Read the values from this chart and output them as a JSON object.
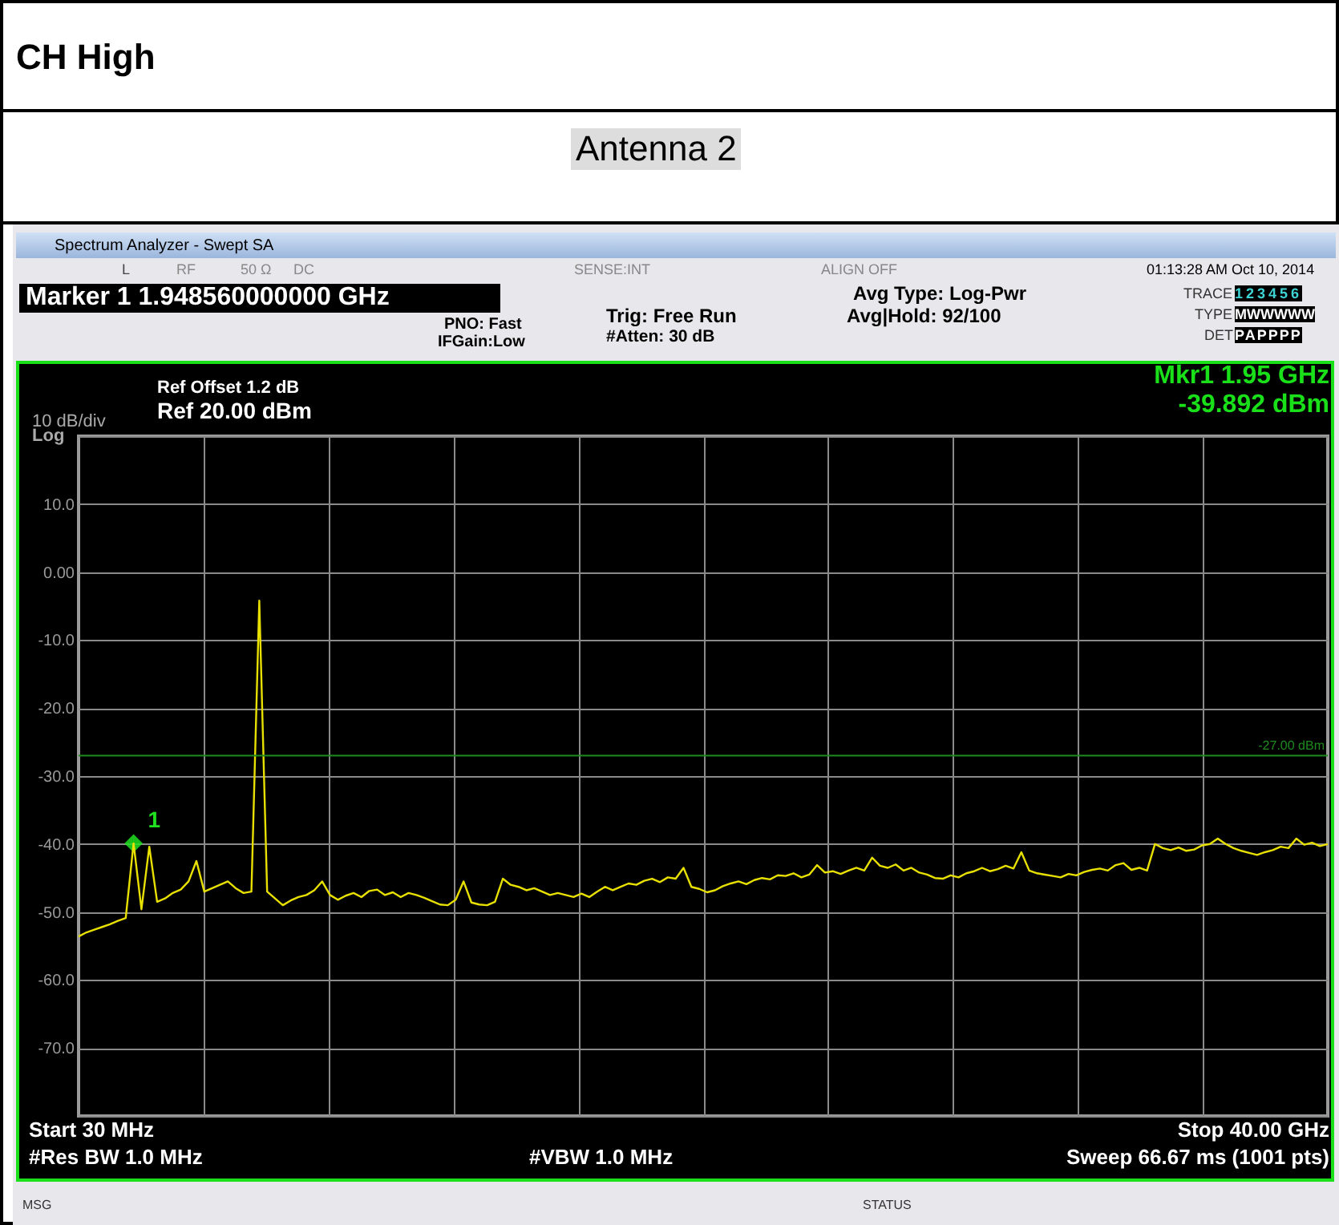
{
  "chart_data": {
    "type": "line",
    "title": "CH  High",
    "subtitle": "Antenna 2",
    "categories": [
      null,
      null,
      null,
      null,
      null,
      null,
      null,
      null,
      null,
      null,
      null,
      null,
      null,
      null,
      null,
      null,
      null,
      null,
      null,
      null,
      null,
      null,
      null,
      null,
      null,
      null,
      null,
      null,
      null,
      null,
      null,
      null,
      null,
      null,
      null,
      null,
      null,
      null,
      null,
      null,
      null,
      null,
      null,
      null,
      null,
      null,
      null,
      null,
      null,
      null,
      null,
      null,
      null,
      null,
      null,
      null,
      null,
      null,
      null,
      null,
      null,
      null,
      null,
      null,
      null,
      null,
      null,
      null,
      null,
      null,
      null,
      null,
      null,
      null,
      null,
      null,
      null,
      null,
      null,
      null,
      null,
      null,
      null,
      null,
      null,
      null,
      null,
      null,
      null,
      null,
      null,
      null,
      null,
      null,
      null,
      null,
      null,
      null,
      null,
      null,
      null,
      null,
      null,
      null,
      null,
      null,
      null,
      null,
      null,
      null,
      null,
      null,
      null,
      null,
      null,
      null,
      null,
      null,
      null,
      null,
      null,
      null,
      null,
      null,
      null,
      null,
      null,
      null,
      null,
      null,
      null,
      null,
      null,
      null,
      null,
      null,
      null,
      null,
      null,
      null,
      null,
      null,
      null,
      null,
      null,
      null,
      null,
      null,
      null,
      null,
      null,
      null,
      null,
      null,
      null,
      null,
      null,
      null,
      null,
      null
    ],
    "ylim": [
      -80,
      20
    ],
    "yticks": [
      {
        "value": 20,
        "label": null
      },
      {
        "value": 10,
        "label": "10.0"
      },
      {
        "value": 0,
        "label": "0.00"
      },
      {
        "value": -10,
        "label": "-10.0"
      },
      {
        "value": -20,
        "label": "-20.0"
      },
      {
        "value": -30,
        "label": "-30.0"
      },
      {
        "value": -40,
        "label": "-40.0"
      },
      {
        "value": -50,
        "label": "-50.0"
      },
      {
        "value": -60,
        "label": "-60.0"
      },
      {
        "value": -70,
        "label": "-70.0"
      },
      {
        "value": -80,
        "label": null
      }
    ],
    "tick_labels": "y",
    "grid": true,
    "series": [
      {
        "color": "#e8e000",
        "values": [
          -53.6,
          -53.0,
          -52.6,
          -52.2,
          -51.8,
          -51.3,
          -50.9,
          -39.9,
          -49.6,
          -40.4,
          -48.5,
          -48.0,
          -47.2,
          -46.7,
          -45.5,
          -42.5,
          -47,
          -46.5,
          -46,
          -45.5,
          -46.5,
          -47.2,
          -47,
          -4.2,
          -47,
          -48,
          -49,
          -48.3,
          -47.8,
          -47.5,
          -46.8,
          -45.5,
          -47.5,
          -48.2,
          -47.6,
          -47.2,
          -47.8,
          -46.9,
          -46.7,
          -47.5,
          -47.1,
          -47.8,
          -47.2,
          -47.5,
          -47.9,
          -48.4,
          -48.9,
          -49,
          -48.2,
          -45.5,
          -48.6,
          -48.9,
          -49,
          -48.5,
          -45.1,
          -46,
          -46.3,
          -46.8,
          -46.5,
          -47,
          -47.5,
          -47.2,
          -47.5,
          -47.8,
          -47.3,
          -47.8,
          -47,
          -46.3,
          -46.8,
          -46.3,
          -45.8,
          -46,
          -45.4,
          -45.1,
          -45.6,
          -44.9,
          -45.1,
          -43.5,
          -46.3,
          -46.6,
          -47.1,
          -46.8,
          -46.2,
          -45.8,
          -45.5,
          -45.9,
          -45.3,
          -45,
          -45.2,
          -44.6,
          -44.7,
          -44.3,
          -44.9,
          -44.5,
          -43.1,
          -44.2,
          -44,
          -44.4,
          -43.9,
          -43.5,
          -43.9,
          -42,
          -43.2,
          -43.5,
          -43,
          -43.9,
          -43.5,
          -44.2,
          -44.5,
          -45,
          -45.1,
          -44.6,
          -44.9,
          -44.3,
          -44,
          -43.5,
          -44,
          -43.7,
          -43.2,
          -43.6,
          -41.2,
          -43.9,
          -44.3,
          -44.5,
          -44.7,
          -44.9,
          -44.4,
          -44.6,
          -44.1,
          -43.8,
          -43.6,
          -43.9,
          -43.1,
          -42.8,
          -43.8,
          -43.5,
          -43.9,
          -40,
          -40.6,
          -40.9,
          -40.5,
          -41,
          -40.8,
          -40.2,
          -40,
          -39.2,
          -40,
          -40.6,
          -41,
          -41.3,
          -41.6,
          -41.2,
          -40.9,
          -40.4,
          -40.6,
          -39.2,
          -40.1,
          -39.8,
          -40.3,
          -40
        ]
      },
      {
        "type": "scatter",
        "name": "1",
        "color": "#20e020",
        "marker": "diamond",
        "values": [
          null,
          null,
          null,
          null,
          null,
          null,
          null,
          -39.9,
          null,
          null,
          null,
          null,
          null,
          null,
          null,
          null,
          null,
          null,
          null,
          null,
          null,
          null,
          null,
          null,
          null,
          null,
          null,
          null,
          null,
          null,
          null,
          null,
          null,
          null,
          null,
          null,
          null,
          null,
          null,
          null,
          null,
          null,
          null,
          null,
          null,
          null,
          null,
          null,
          null,
          null,
          null,
          null,
          null,
          null,
          null,
          null,
          null,
          null,
          null,
          null,
          null,
          null,
          null,
          null,
          null,
          null,
          null,
          null,
          null,
          null,
          null,
          null,
          null,
          null,
          null,
          null,
          null,
          null,
          null,
          null,
          null,
          null,
          null,
          null,
          null,
          null,
          null,
          null,
          null,
          null,
          null,
          null,
          null,
          null,
          null,
          null,
          null,
          null,
          null,
          null,
          null,
          null,
          null,
          null,
          null,
          null,
          null,
          null,
          null,
          null,
          null,
          null,
          null,
          null,
          null,
          null,
          null,
          null,
          null,
          null,
          null,
          null,
          null,
          null,
          null,
          null,
          null,
          null,
          null,
          null,
          null,
          null,
          null,
          null,
          null,
          null,
          null,
          null,
          null,
          null,
          null,
          null,
          null,
          null,
          null,
          null,
          null,
          null,
          null,
          null,
          null,
          null,
          null,
          null,
          null,
          null,
          null,
          null,
          null,
          null
        ]
      }
    ],
    "ref_lines": [
      {
        "axis": "y",
        "value": -27,
        "label": "-27.00 dBm",
        "color": "#1f8a1f"
      }
    ],
    "annotations": [
      "Spectrum Analyzer - Swept SA",
      "L",
      "RF",
      "50 Ω",
      "DC",
      "SENSE:INT",
      "ALIGN OFF",
      "01:13:28 AM Oct 10, 2014",
      "Marker 1 1.948560000000 GHz",
      "PNO: Fast",
      "IFGain:Low",
      "Trig: Free Run",
      "#Atten: 30 dB",
      "Avg Type: Log-Pwr",
      "Avg|Hold: 92/100",
      "TRACE",
      "TYPE",
      "DET",
      "123456",
      "MWWWWW",
      "PAPPPP",
      "Ref Offset 1.2 dB",
      "Ref 20.00 dBm",
      "10 dB/div",
      "Log",
      "Mkr1 1.95 GHz",
      "-39.892 dBm",
      "Start 30 MHz",
      "Stop 40.00 GHz",
      "#Res BW 1.0 MHz",
      "#VBW 1.0 MHz",
      "Sweep  66.67 ms (1001 pts)",
      "MSG",
      "STATUS"
    ]
  }
}
